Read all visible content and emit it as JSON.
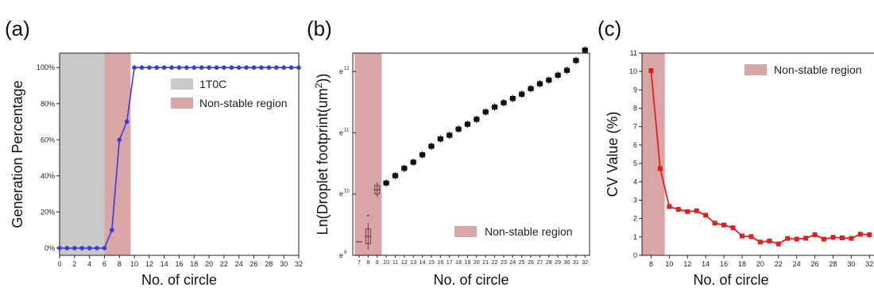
{
  "chart_data": [
    {
      "type": "line",
      "panel_label": "(a)",
      "xlabel": "No. of circle",
      "ylabel": "Generation Percentage",
      "xlim": [
        0,
        32
      ],
      "ylim": [
        -0.04,
        1.08
      ],
      "x_ticks": [
        0,
        2,
        4,
        6,
        8,
        10,
        12,
        14,
        16,
        18,
        20,
        22,
        24,
        26,
        28,
        30,
        32
      ],
      "y_ticks": [
        {
          "value": 0,
          "label": "0%"
        },
        {
          "value": 0.2,
          "label": "20%"
        },
        {
          "value": 0.4,
          "label": "40%"
        },
        {
          "value": 0.6,
          "label": "60%"
        },
        {
          "value": 0.8,
          "label": "80%"
        },
        {
          "value": 1.0,
          "label": "100%"
        }
      ],
      "regions": [
        {
          "name": "1T0C",
          "x_range": [
            0,
            6
          ],
          "color": "#c7c9cb"
        },
        {
          "name": "Non-stable region",
          "x_range": [
            6,
            9.5
          ],
          "color": "#d9a6a6"
        }
      ],
      "legend": [
        "1T0C",
        "Non-stable region"
      ],
      "legend_placement": "upper-middle",
      "series": [
        {
          "color": "#3b3bd6",
          "x": [
            0,
            1,
            2,
            3,
            4,
            5,
            6,
            7,
            8,
            9,
            10,
            11,
            12,
            13,
            14,
            15,
            16,
            17,
            18,
            19,
            20,
            21,
            22,
            23,
            24,
            25,
            26,
            27,
            28,
            29,
            30,
            31,
            32
          ],
          "y": [
            0,
            0,
            0,
            0,
            0,
            0,
            0,
            0.1,
            0.6,
            0.7,
            1,
            1,
            1,
            1,
            1,
            1,
            1,
            1,
            1,
            1,
            1,
            1,
            1,
            1,
            1,
            1,
            1,
            1,
            1,
            1,
            1,
            1,
            1
          ]
        }
      ]
    },
    {
      "type": "box",
      "panel_label": "(b)",
      "xlabel": "No. of circle",
      "ylabel": "Ln(Droplet footprint(um²))",
      "ylabel_parts": {
        "main": "Ln(Droplet footprint(um",
        "sup": "2",
        "end": "))"
      },
      "x_categories": [
        7,
        8,
        9,
        10,
        11,
        12,
        13,
        14,
        15,
        16,
        17,
        18,
        19,
        20,
        21,
        22,
        23,
        24,
        25,
        26,
        27,
        28,
        29,
        30,
        31,
        32
      ],
      "y_ticks": [
        {
          "value": 9,
          "label": "e",
          "exp": "9"
        },
        {
          "value": 10,
          "label": "e",
          "exp": "10"
        },
        {
          "value": 11,
          "label": "e",
          "exp": "11"
        },
        {
          "value": 12,
          "label": "e",
          "exp": "12"
        }
      ],
      "ylim": [
        9,
        12.3
      ],
      "regions": [
        {
          "name": "Non-stable region",
          "x_range": [
            6.5,
            9.5
          ],
          "color": "#d9a6a6"
        }
      ],
      "legend": [
        "Non-stable region"
      ],
      "legend_placement": "lower-right",
      "medians": [
        9.22,
        9.31,
        10.07,
        10.18,
        10.3,
        10.42,
        10.52,
        10.64,
        10.78,
        10.9,
        10.96,
        11.06,
        11.14,
        11.22,
        11.34,
        11.42,
        11.49,
        11.56,
        11.63,
        11.72,
        11.8,
        11.86,
        11.94,
        12.02,
        12.18,
        12.35
      ],
      "outlier": {
        "x": 8,
        "y": 9.65
      },
      "colors": {
        "unstable": "#6b3f3f",
        "stable": "#111111"
      }
    },
    {
      "type": "line",
      "panel_label": "(c)",
      "xlabel": "No. of circle",
      "ylabel": "CV Value (%)",
      "xlim": [
        7,
        32.5
      ],
      "ylim": [
        0,
        11
      ],
      "x_ticks": [
        8,
        10,
        12,
        14,
        16,
        18,
        20,
        22,
        24,
        26,
        28,
        30,
        32
      ],
      "y_ticks": [
        0,
        1,
        2,
        3,
        4,
        5,
        6,
        7,
        8,
        9,
        10,
        11
      ],
      "regions": [
        {
          "name": "Non-stable region",
          "x_range": [
            7,
            9.5
          ],
          "color": "#d9a6a6"
        }
      ],
      "legend": [
        "Non-stable region"
      ],
      "legend_placement": "top-right",
      "series": [
        {
          "color": "#e02020",
          "x": [
            8,
            9,
            10,
            11,
            12,
            13,
            14,
            15,
            16,
            17,
            18,
            19,
            20,
            21,
            22,
            23,
            24,
            25,
            26,
            27,
            28,
            29,
            30,
            31,
            32
          ],
          "y": [
            10.05,
            4.72,
            2.65,
            2.5,
            2.38,
            2.42,
            2.18,
            1.75,
            1.65,
            1.5,
            1.05,
            1.02,
            0.72,
            0.78,
            0.62,
            0.92,
            0.88,
            0.93,
            1.12,
            0.88,
            0.98,
            0.95,
            0.92,
            1.15,
            1.12
          ]
        }
      ]
    }
  ]
}
